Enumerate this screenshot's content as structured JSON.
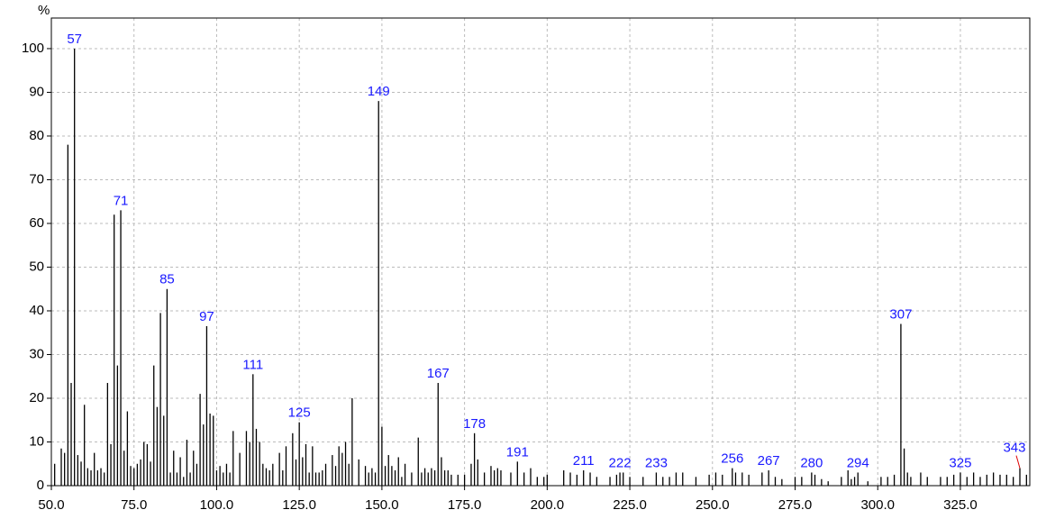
{
  "chart_data": {
    "type": "stem",
    "y_axis_label": "%",
    "x": [
      51,
      53,
      54,
      55,
      56,
      57,
      58,
      59,
      60,
      61,
      62,
      63,
      64,
      65,
      66,
      67,
      68,
      69,
      70,
      71,
      72,
      73,
      74,
      75,
      76,
      77,
      78,
      79,
      80,
      81,
      82,
      83,
      84,
      85,
      86,
      87,
      88,
      89,
      90,
      91,
      92,
      93,
      94,
      95,
      96,
      97,
      98,
      99,
      100,
      101,
      102,
      103,
      104,
      105,
      107,
      109,
      110,
      111,
      112,
      113,
      114,
      115,
      116,
      117,
      119,
      120,
      121,
      123,
      124,
      125,
      126,
      127,
      128,
      129,
      130,
      131,
      132,
      133,
      135,
      136,
      137,
      138,
      139,
      140,
      141,
      143,
      145,
      146,
      147,
      148,
      149,
      150,
      151,
      152,
      153,
      154,
      155,
      156,
      157,
      159,
      161,
      162,
      163,
      164,
      165,
      166,
      167,
      168,
      169,
      170,
      171,
      173,
      175,
      177,
      178,
      179,
      181,
      183,
      184,
      185,
      186,
      189,
      191,
      193,
      195,
      197,
      199,
      200,
      205,
      207,
      209,
      211,
      213,
      215,
      219,
      221,
      222,
      223,
      225,
      229,
      233,
      235,
      237,
      239,
      241,
      245,
      249,
      251,
      253,
      256,
      257,
      259,
      261,
      265,
      267,
      269,
      271,
      275,
      277,
      280,
      281,
      283,
      285,
      289,
      291,
      292,
      293,
      294,
      297,
      301,
      303,
      305,
      307,
      308,
      309,
      310,
      313,
      315,
      319,
      321,
      323,
      325,
      327,
      329,
      331,
      333,
      335,
      337,
      339,
      341,
      343,
      345
    ],
    "values": [
      5,
      8.5,
      7.5,
      78,
      23.5,
      100,
      7,
      5.5,
      18.5,
      4,
      3.5,
      7.5,
      3.5,
      4,
      3,
      23.5,
      9.5,
      62,
      27.5,
      63,
      8,
      17,
      4.5,
      4,
      5,
      6,
      10,
      9.5,
      5.5,
      27.5,
      18,
      39.5,
      16,
      45,
      3,
      8,
      3,
      6.5,
      2,
      10.5,
      3,
      8,
      5,
      21,
      14,
      36.5,
      16.5,
      16,
      3.5,
      4.5,
      3,
      5,
      3,
      12.5,
      7.5,
      12.5,
      10,
      25.5,
      13,
      10,
      5,
      4,
      3.5,
      5,
      7.5,
      3.5,
      9,
      12,
      6,
      14.5,
      6.5,
      9.5,
      3,
      9,
      3,
      3,
      3.5,
      5,
      7,
      4.5,
      9,
      7.5,
      10,
      5,
      20,
      6,
      4.5,
      3,
      4,
      3,
      88,
      13.5,
      4.5,
      7,
      4.5,
      3.5,
      6.5,
      2,
      5,
      3,
      11,
      3,
      4,
      3,
      4,
      3.5,
      23.5,
      6.5,
      3.5,
      3.5,
      2.5,
      2.5,
      2.5,
      5,
      12,
      6,
      3,
      4.5,
      3.5,
      4,
      3.5,
      3,
      5.5,
      3,
      4,
      2,
      2,
      2.5,
      3.5,
      3,
      2.5,
      3.5,
      3,
      2,
      2,
      2.5,
      3,
      3,
      2,
      2,
      3,
      2,
      2,
      3,
      3,
      2,
      2.5,
      3,
      2.5,
      4,
      3,
      3,
      2.5,
      3,
      3.5,
      2,
      1.5,
      2,
      2,
      3,
      2.5,
      1.5,
      1,
      2,
      3.5,
      1.5,
      2,
      3,
      1,
      2,
      2,
      2.5,
      37,
      8.5,
      3,
      2,
      3,
      2,
      2,
      2,
      2.5,
      3,
      2,
      3,
      2,
      2.5,
      3,
      2.5,
      2.5,
      2,
      4,
      2.5
    ],
    "labeled_peaks": [
      57,
      71,
      85,
      97,
      111,
      125,
      149,
      167,
      178,
      191,
      211,
      222,
      233,
      256,
      267,
      280,
      294,
      307,
      325,
      343
    ],
    "color": "#000000",
    "label_color": "#1a1aff",
    "xlim": [
      50,
      346
    ],
    "ylim": [
      0,
      107
    ],
    "xticks": [
      {
        "value": 50,
        "label": "50.0"
      },
      {
        "value": 75,
        "label": "75.0"
      },
      {
        "value": 100,
        "label": "100.0"
      },
      {
        "value": 125,
        "label": "125.0"
      },
      {
        "value": 150,
        "label": "150.0"
      },
      {
        "value": 175,
        "label": "175.0"
      },
      {
        "value": 200,
        "label": "200.0"
      },
      {
        "value": 225,
        "label": "225.0"
      },
      {
        "value": 250,
        "label": "250.0"
      },
      {
        "value": 275,
        "label": "275.0"
      },
      {
        "value": 300,
        "label": "300.0"
      },
      {
        "value": 325,
        "label": "325.0"
      }
    ],
    "yticks": [
      0,
      10,
      20,
      30,
      40,
      50,
      60,
      70,
      80,
      90,
      100
    ],
    "grid": true
  }
}
